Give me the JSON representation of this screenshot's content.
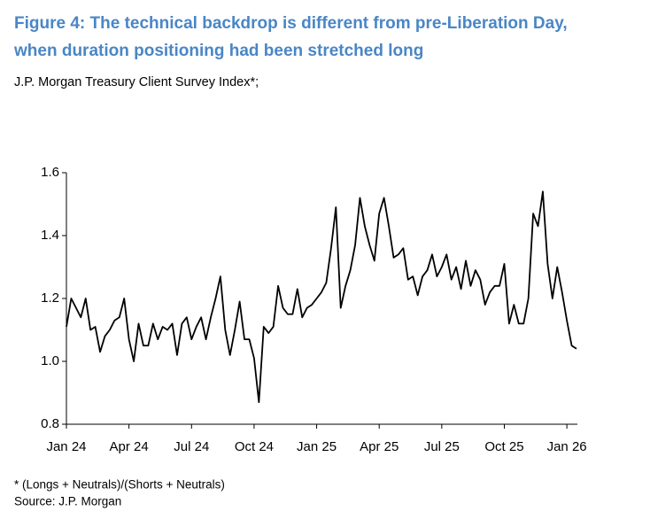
{
  "chart_data": {
    "type": "line",
    "title": "Figure 4: The technical backdrop is different from pre-Liberation Day,",
    "title_line2": "when duration positioning had been stretched long",
    "subtitle": "J.P. Morgan Treasury Client Survey Index*;",
    "footnote": "* (Longs + Neutrals)/(Shorts + Neutrals)",
    "source": "Source: J.P. Morgan",
    "color": "#000000",
    "categories": [
      "Jan 24",
      null,
      null,
      null,
      null,
      null,
      null,
      null,
      null,
      null,
      null,
      null,
      null,
      "Apr 24",
      null,
      null,
      null,
      null,
      null,
      null,
      null,
      null,
      null,
      null,
      null,
      null,
      "Jul 24",
      null,
      null,
      null,
      null,
      null,
      null,
      null,
      null,
      null,
      null,
      null,
      null,
      "Oct 24",
      null,
      null,
      null,
      null,
      null,
      null,
      null,
      null,
      null,
      null,
      null,
      null,
      "Jan 25",
      null,
      null,
      null,
      null,
      null,
      null,
      null,
      null,
      null,
      null,
      null,
      null,
      "Apr 25",
      null,
      null,
      null,
      null,
      null,
      null,
      null,
      null,
      null,
      null,
      null,
      null,
      "Jul 25",
      null,
      null,
      null,
      null,
      null,
      null,
      null,
      null,
      null,
      null,
      null,
      null,
      "Oct 25",
      null,
      null,
      null,
      null,
      null,
      null,
      null,
      null,
      null,
      null,
      null,
      null,
      "Jan 26",
      null,
      null
    ],
    "values": [
      1.11,
      1.2,
      1.17,
      1.14,
      1.2,
      1.1,
      1.11,
      1.03,
      1.08,
      1.1,
      1.13,
      1.14,
      1.2,
      1.07,
      1.0,
      1.12,
      1.05,
      1.05,
      1.12,
      1.07,
      1.11,
      1.1,
      1.12,
      1.02,
      1.12,
      1.14,
      1.07,
      1.11,
      1.14,
      1.07,
      1.14,
      1.2,
      1.27,
      1.1,
      1.02,
      1.1,
      1.19,
      1.07,
      1.07,
      1.01,
      0.87,
      1.11,
      1.09,
      1.11,
      1.24,
      1.17,
      1.15,
      1.15,
      1.23,
      1.14,
      1.17,
      1.18,
      1.2,
      1.22,
      1.25,
      1.36,
      1.49,
      1.17,
      1.24,
      1.29,
      1.37,
      1.52,
      1.43,
      1.37,
      1.32,
      1.47,
      1.52,
      1.43,
      1.33,
      1.34,
      1.36,
      1.26,
      1.27,
      1.21,
      1.27,
      1.29,
      1.34,
      1.27,
      1.3,
      1.34,
      1.26,
      1.3,
      1.23,
      1.32,
      1.24,
      1.29,
      1.26,
      1.18,
      1.22,
      1.24,
      1.24,
      1.31,
      1.12,
      1.18,
      1.12,
      1.12,
      1.2,
      1.47,
      1.43,
      1.54,
      1.31,
      1.2,
      1.3,
      1.22,
      1.13,
      1.05,
      1.04
    ],
    "ylim": [
      0.8,
      1.6
    ],
    "yticks": [
      0.8,
      {
        "value": 1,
        "label": "1.0"
      },
      1.2,
      1.4,
      1.6
    ]
  }
}
